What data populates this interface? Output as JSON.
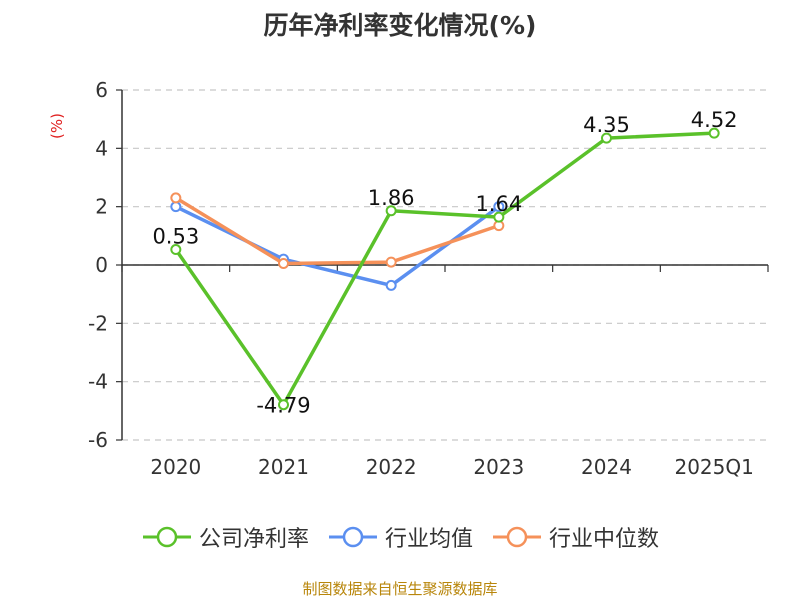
{
  "chart_data": {
    "type": "line",
    "title": "历年净利率变化情况(%)",
    "ylabel": "(%)",
    "xlabel": "",
    "categories": [
      "2020",
      "2021",
      "2022",
      "2023",
      "2024",
      "2025Q1"
    ],
    "ylim": [
      -6,
      6
    ],
    "yticks": [
      "6",
      "4",
      "2",
      "0",
      "-2",
      "-4",
      "-6"
    ],
    "grid": true,
    "legend_position": "bottom",
    "series": [
      {
        "name": "公司净利率",
        "color": "#5ac12a",
        "values": [
          0.53,
          -4.79,
          1.86,
          1.64,
          4.35,
          4.52
        ],
        "labels": [
          "0.53",
          "-4.79",
          "1.86",
          "1.64",
          "4.35",
          "4.52"
        ]
      },
      {
        "name": "行业均值",
        "color": "#5b8ff0",
        "values": [
          2.0,
          0.2,
          -0.7,
          2.0,
          null,
          null
        ]
      },
      {
        "name": "行业中位数",
        "color": "#f5915a",
        "values": [
          2.3,
          0.05,
          0.1,
          1.35,
          null,
          null
        ]
      }
    ]
  },
  "source": "制图数据来自恒生聚源数据库",
  "colors": {
    "ylabel": "#e02020",
    "source": "#b8860b"
  }
}
